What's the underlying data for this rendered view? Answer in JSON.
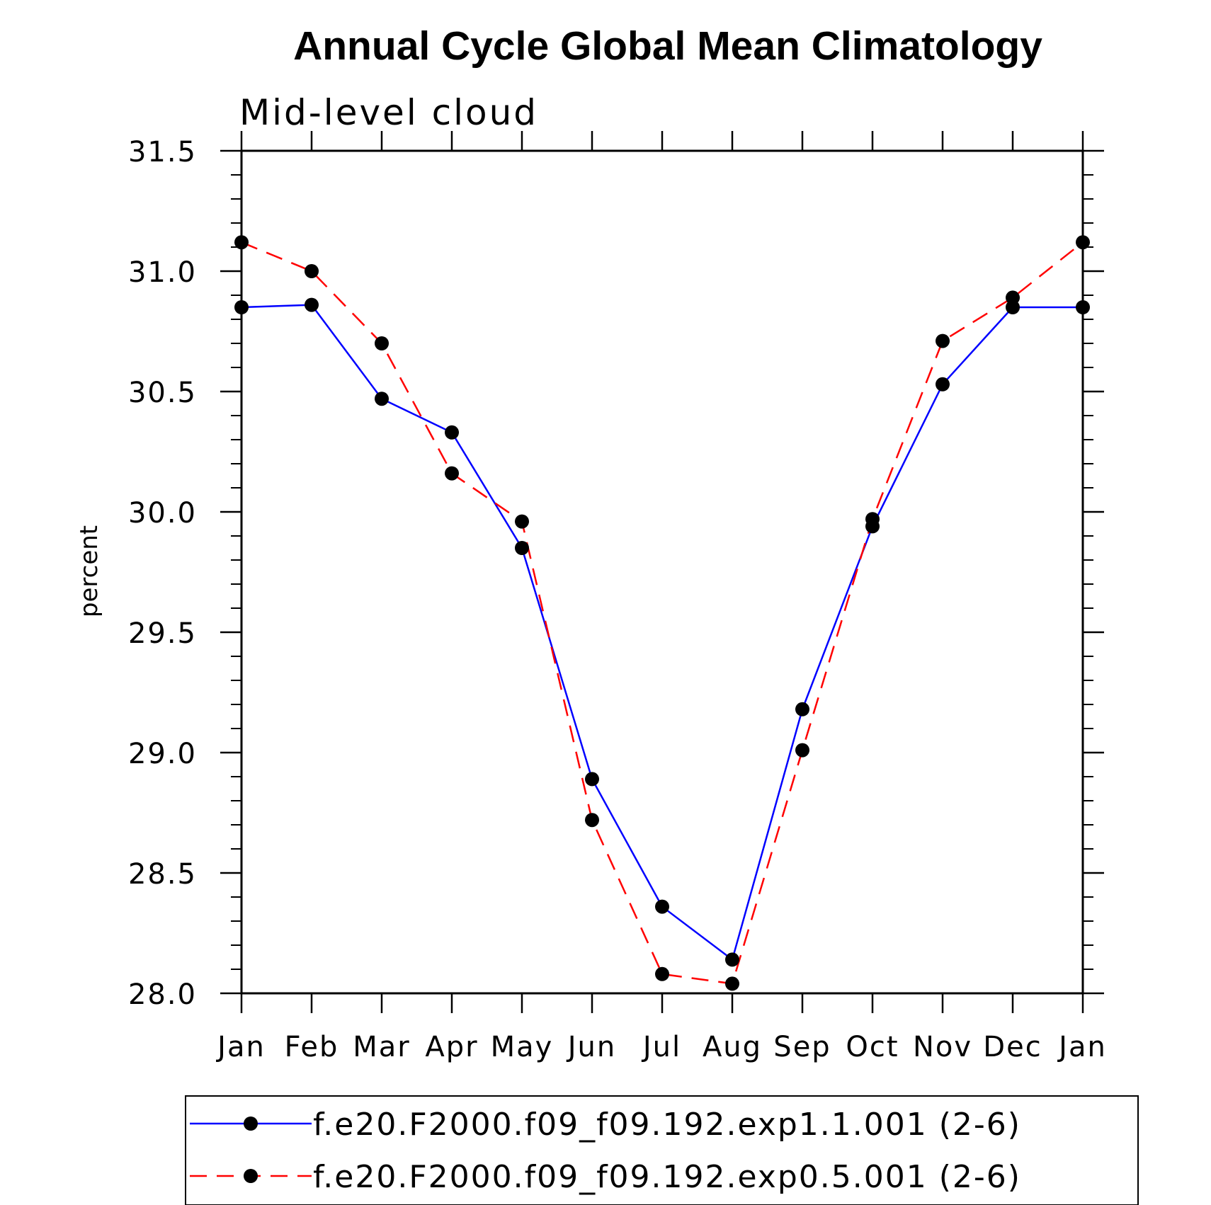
{
  "chart_data": {
    "type": "line",
    "title": "Annual Cycle Global Mean Climatology",
    "subtitle": "Mid-level cloud",
    "xlabel": "",
    "ylabel": "percent",
    "categories": [
      "Jan",
      "Feb",
      "Mar",
      "Apr",
      "May",
      "Jun",
      "Jul",
      "Aug",
      "Sep",
      "Oct",
      "Nov",
      "Dec",
      "Jan"
    ],
    "ylim": [
      28.0,
      31.5
    ],
    "yticks": [
      28.0,
      28.5,
      29.0,
      29.5,
      30.0,
      30.5,
      31.0,
      31.5
    ],
    "ytick_labels": [
      "28.0",
      "28.5",
      "29.0",
      "29.5",
      "30.0",
      "30.5",
      "31.0",
      "31.5"
    ],
    "minor_ticks_per_major": 5,
    "grid": false,
    "legend_position": "bottom",
    "series": [
      {
        "name": "f.e20.F2000.f09_f09.192.exp1.1.001 (2-6)",
        "color": "#0000ff",
        "dashed": false,
        "marker": "filled-circle",
        "values": [
          30.85,
          30.86,
          30.47,
          30.33,
          29.85,
          28.89,
          28.36,
          28.14,
          29.18,
          29.94,
          30.53,
          30.85,
          30.85
        ]
      },
      {
        "name": "f.e20.F2000.f09_f09.192.exp0.5.001 (2-6)",
        "color": "#ff0000",
        "dashed": true,
        "marker": "filled-circle",
        "values": [
          31.12,
          31.0,
          30.7,
          30.16,
          29.96,
          28.72,
          28.08,
          28.04,
          29.01,
          29.97,
          30.71,
          30.89,
          31.12
        ]
      }
    ],
    "legend": {
      "entries": [
        "f.e20.F2000.f09_f09.192.exp1.1.001 (2-6)",
        "f.e20.F2000.f09_f09.192.exp0.5.001 (2-6)"
      ]
    }
  }
}
